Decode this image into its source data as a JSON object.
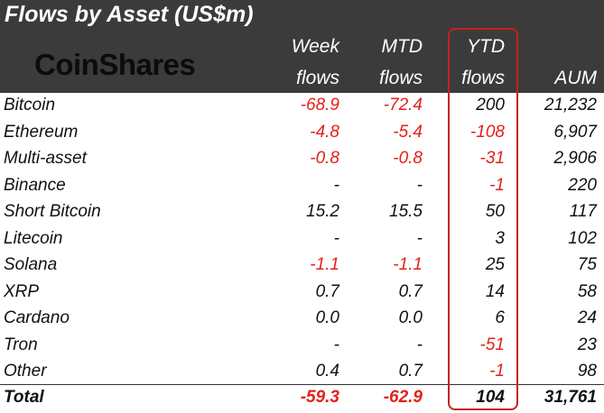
{
  "title": "Flows by Asset (US$m)",
  "logo_text": "CoinShares",
  "columns": [
    {
      "line1": "Week",
      "line2": "flows"
    },
    {
      "line1": "MTD",
      "line2": "flows"
    },
    {
      "line1": "YTD",
      "line2": "flows"
    },
    {
      "line1": "",
      "line2": "AUM"
    }
  ],
  "rows": [
    {
      "name": "Bitcoin",
      "week": "-68.9",
      "mtd": "-72.4",
      "ytd": "200",
      "aum": "21,232"
    },
    {
      "name": "Ethereum",
      "week": "-4.8",
      "mtd": "-5.4",
      "ytd": "-108",
      "aum": "6,907"
    },
    {
      "name": "Multi-asset",
      "week": "-0.8",
      "mtd": "-0.8",
      "ytd": "-31",
      "aum": "2,906"
    },
    {
      "name": "Binance",
      "week": "-",
      "mtd": "-",
      "ytd": "-1",
      "aum": "220"
    },
    {
      "name": "Short Bitcoin",
      "week": "15.2",
      "mtd": "15.5",
      "ytd": "50",
      "aum": "117"
    },
    {
      "name": "Litecoin",
      "week": "-",
      "mtd": "-",
      "ytd": "3",
      "aum": "102"
    },
    {
      "name": "Solana",
      "week": "-1.1",
      "mtd": "-1.1",
      "ytd": "25",
      "aum": "75"
    },
    {
      "name": "XRP",
      "week": "0.7",
      "mtd": "0.7",
      "ytd": "14",
      "aum": "58"
    },
    {
      "name": "Cardano",
      "week": "0.0",
      "mtd": "0.0",
      "ytd": "6",
      "aum": "24"
    },
    {
      "name": "Tron",
      "week": "-",
      "mtd": "-",
      "ytd": "-51",
      "aum": "23"
    },
    {
      "name": "Other",
      "week": "0.4",
      "mtd": "0.7",
      "ytd": "-1",
      "aum": "98"
    }
  ],
  "total": {
    "name": "Total",
    "week": "-59.3",
    "mtd": "-62.9",
    "ytd": "104",
    "aum": "31,761"
  },
  "colors": {
    "header_bg": "#3b3b3b",
    "negative": "#e32119",
    "highlight_box": "#c71f24"
  }
}
